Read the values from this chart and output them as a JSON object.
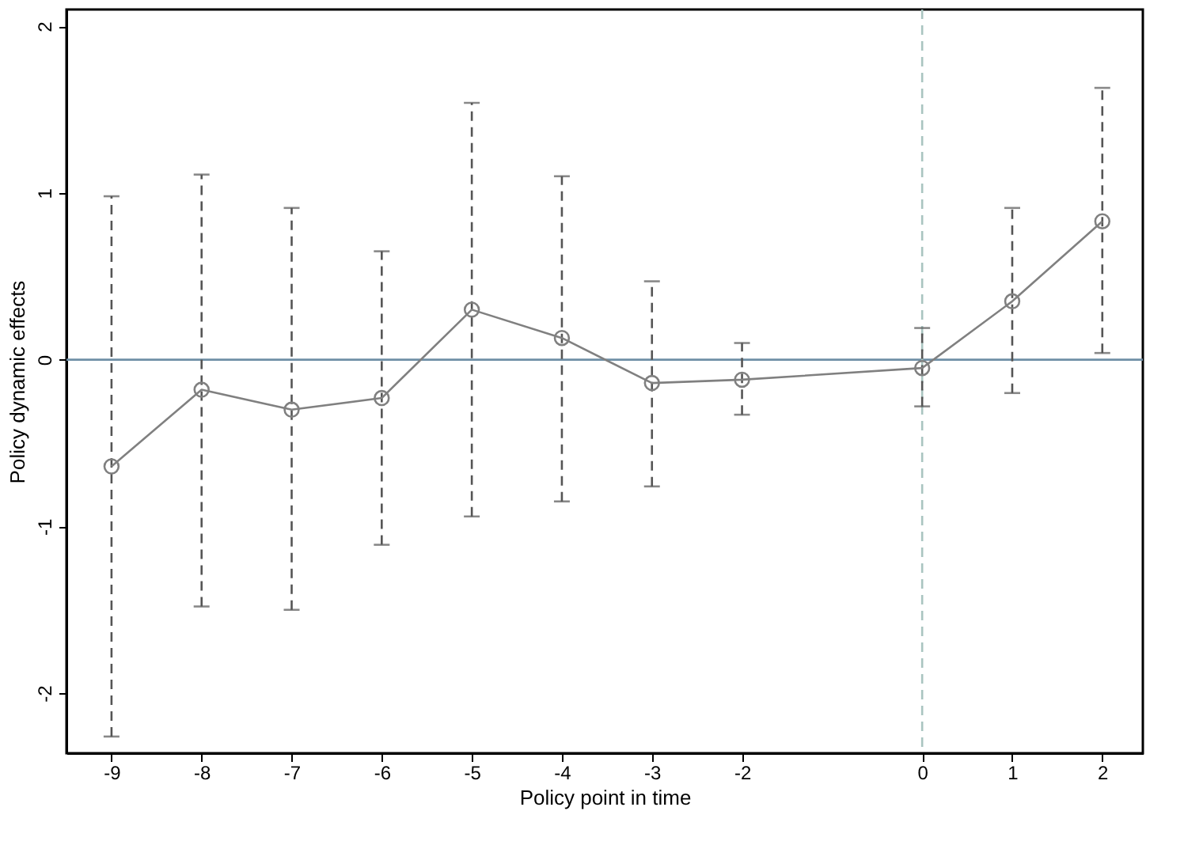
{
  "chart_data": {
    "type": "line",
    "xlabel": "Policy point in time",
    "ylabel": "Policy dynamic effects",
    "x": [
      -9,
      -8,
      -7,
      -6,
      -5,
      -4,
      -3,
      -2,
      0,
      1,
      2
    ],
    "series": [
      {
        "color": "#808080",
        "values": [
          -0.64,
          -0.18,
          -0.3,
          -0.23,
          0.3,
          0.13,
          -0.14,
          -0.12,
          -0.05,
          0.35,
          0.83
        ],
        "errors": [
          [
            -2.26,
            0.98
          ],
          [
            -1.48,
            1.11
          ],
          [
            -1.5,
            0.91
          ],
          [
            -1.11,
            0.65
          ],
          [
            -0.94,
            1.54
          ],
          [
            -0.85,
            1.1
          ],
          [
            -0.76,
            0.47
          ],
          [
            -0.33,
            0.1
          ],
          [
            -0.28,
            0.19
          ],
          [
            -0.2,
            0.91
          ],
          [
            0.04,
            1.63
          ]
        ]
      }
    ],
    "xlim": [
      -9.5,
      2.45
    ],
    "xticks": [
      -9,
      -8,
      -7,
      -6,
      -5,
      -4,
      -3,
      -2,
      0,
      1,
      2
    ],
    "ylim": [
      -2.36,
      2.1
    ],
    "yticks": [
      -2,
      -1,
      0,
      1,
      2
    ],
    "ref_lines": [
      {
        "axis": "y",
        "value": 0,
        "color": "#6f8fa6",
        "line_style": "solid"
      },
      {
        "axis": "x",
        "value": 0,
        "color": "#a9c4c0",
        "line_style": "dashed"
      }
    ],
    "marker": "circle",
    "grid": false,
    "legend": false
  }
}
